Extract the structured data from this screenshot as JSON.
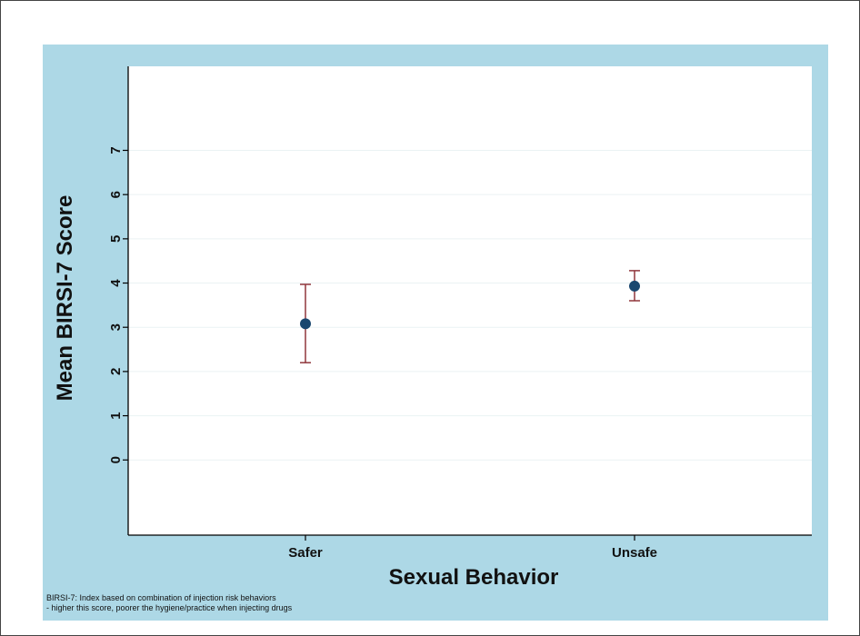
{
  "chart_data": {
    "type": "scatter",
    "title": "",
    "xlabel": "Sexual Behavior",
    "ylabel": "Mean BIRSI-7 Score",
    "categories": [
      "Safer",
      "Unsafe"
    ],
    "series": [
      {
        "points": [
          {
            "x": "Safer",
            "y": 3.08,
            "ci_low": 2.2,
            "ci_high": 3.97
          },
          {
            "x": "Unsafe",
            "y": 3.93,
            "ci_low": 3.6,
            "ci_high": 4.28
          }
        ]
      }
    ],
    "yticks": [
      0,
      1,
      2,
      3,
      4,
      5,
      6,
      7
    ],
    "ylim": [
      -1.7,
      8.9
    ],
    "grid": true,
    "colors": {
      "background": "#add8e6",
      "plot_area": "#ffffff",
      "gridline": "#eaf2f3",
      "marker": "#1a476f",
      "error_bar": "#90353b",
      "axis": "#000000"
    },
    "notes": [
      "BIRSI-7: Index based on combination of injection risk behaviors",
      "- higher this score, poorer the hygiene/practice when injecting drugs"
    ]
  }
}
